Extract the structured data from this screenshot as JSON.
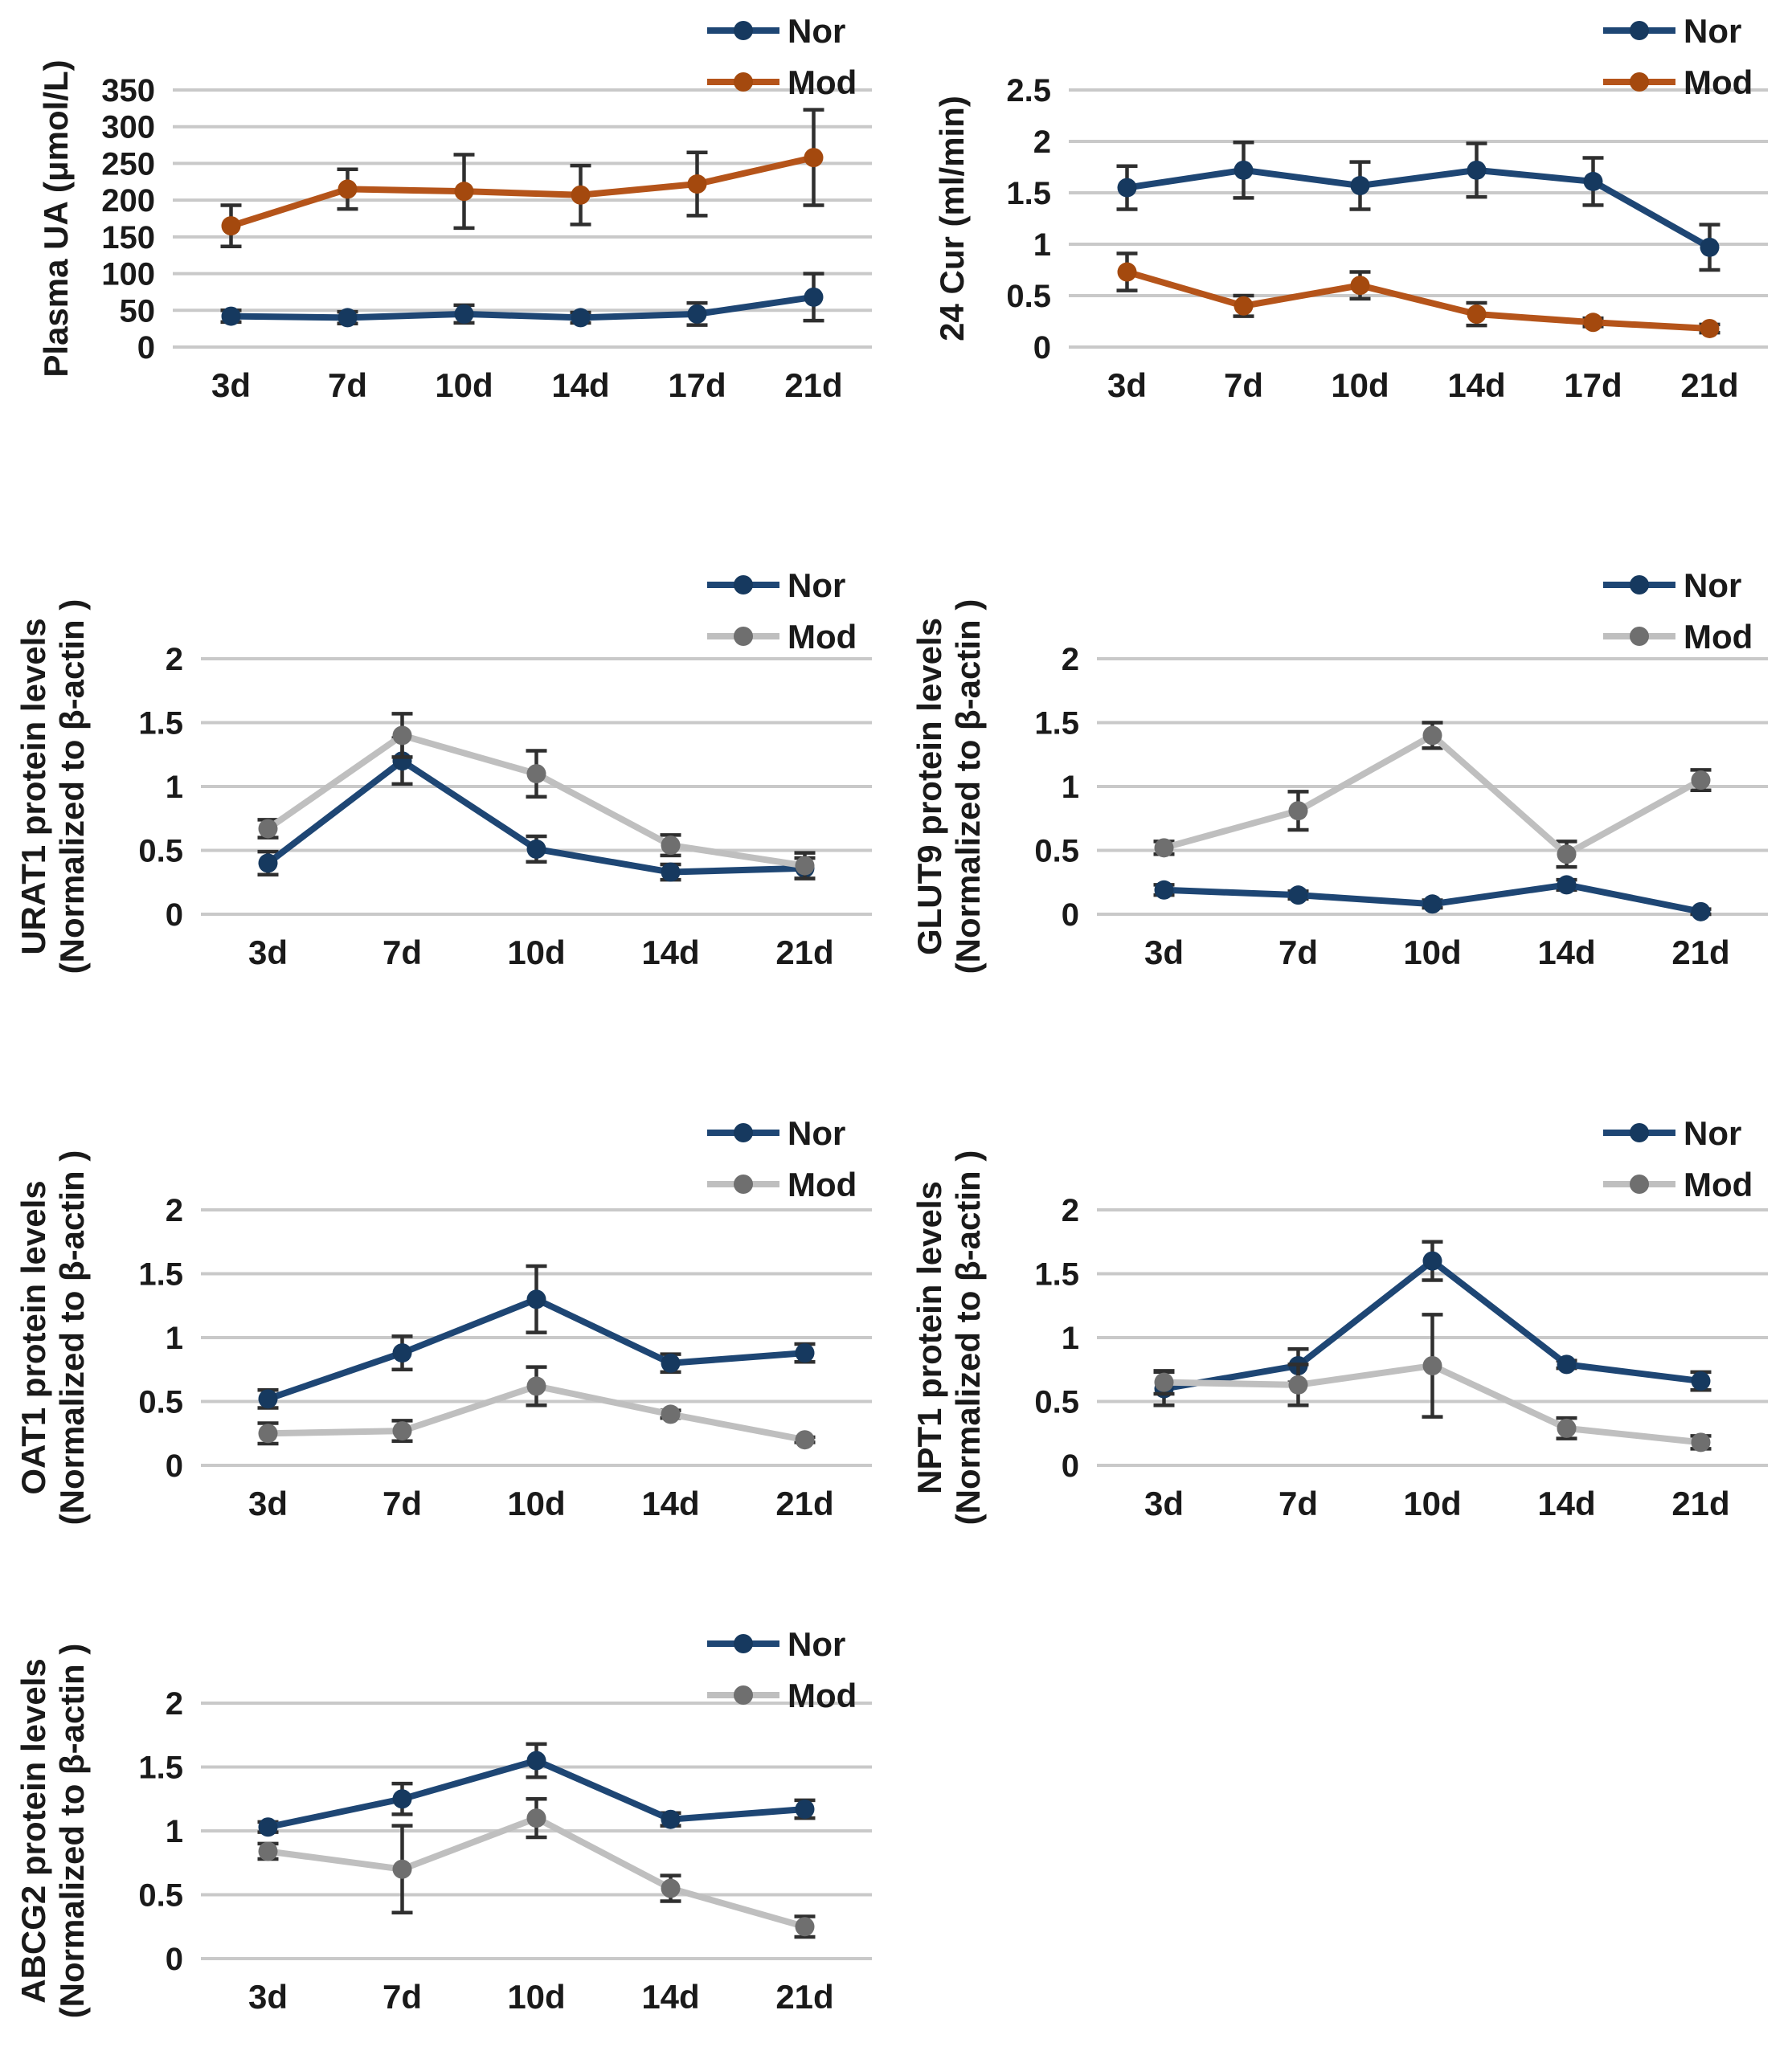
{
  "figure": {
    "background_color": "#ffffff",
    "description_labels": {
      "legend_nor": "Nor",
      "legend_mod": "Mod"
    }
  },
  "palette": {
    "nor_blue_line": "#1E4674",
    "nor_blue_marker": "#16395F",
    "mod_orange_line": "#B5541A",
    "mod_orange_marker": "#A4490E",
    "mod_gray_line": "#BFBFBF",
    "mod_gray_marker": "#6F6F6F",
    "gridline": "#C9C9C9",
    "error_bar": "#2F2F2F",
    "text": "#1a1a1a"
  },
  "chart_data": [
    {
      "id": "plasma-ua",
      "type": "line",
      "title": "",
      "ylabel_lines": [
        "Plasma UA (μmol/L)"
      ],
      "categories": [
        "3d",
        "7d",
        "10d",
        "14d",
        "17d",
        "21d"
      ],
      "ylim": [
        0,
        350
      ],
      "yticks": [
        0,
        50,
        100,
        150,
        200,
        250,
        300,
        350
      ],
      "ytick_labels": [
        "0",
        "50",
        "100",
        "150",
        "200",
        "250",
        "300",
        "350"
      ],
      "grid": true,
      "legend_position": "top-right",
      "series": [
        {
          "name": "Nor",
          "line_color": "#1E4674",
          "marker_color": "#16395F",
          "values": [
            42,
            40,
            45,
            40,
            45,
            68
          ],
          "errors": [
            8,
            8,
            12,
            7,
            15,
            32
          ]
        },
        {
          "name": "Mod",
          "line_color": "#B5541A",
          "marker_color": "#A4490E",
          "values": [
            165,
            215,
            212,
            207,
            222,
            258
          ],
          "errors": [
            28,
            27,
            50,
            40,
            43,
            65
          ]
        }
      ]
    },
    {
      "id": "24-cur",
      "type": "line",
      "title": "",
      "ylabel_lines": [
        "24 Cur (ml/min)"
      ],
      "categories": [
        "3d",
        "7d",
        "10d",
        "14d",
        "17d",
        "21d"
      ],
      "ylim": [
        0,
        2.5
      ],
      "yticks": [
        0,
        0.5,
        1,
        1.5,
        2,
        2.5
      ],
      "ytick_labels": [
        "0",
        "0.5",
        "1",
        "1.5",
        "2",
        "2.5"
      ],
      "grid": true,
      "legend_position": "top-right",
      "series": [
        {
          "name": "Nor",
          "line_color": "#1E4674",
          "marker_color": "#16395F",
          "values": [
            1.55,
            1.72,
            1.57,
            1.72,
            1.61,
            0.97
          ],
          "errors": [
            0.21,
            0.27,
            0.23,
            0.26,
            0.23,
            0.22
          ]
        },
        {
          "name": "Mod",
          "line_color": "#B5541A",
          "marker_color": "#A4490E",
          "values": [
            0.73,
            0.4,
            0.6,
            0.32,
            0.24,
            0.18
          ],
          "errors": [
            0.18,
            0.1,
            0.13,
            0.11,
            0.04,
            0.04
          ]
        }
      ]
    },
    {
      "id": "urat1",
      "type": "line",
      "title": "",
      "ylabel_lines": [
        "URAT1 protein levels",
        "(Normalized to β-actin )"
      ],
      "categories": [
        "3d",
        "7d",
        "10d",
        "14d",
        "21d"
      ],
      "ylim": [
        0,
        2
      ],
      "yticks": [
        0,
        0.5,
        1,
        1.5,
        2
      ],
      "ytick_labels": [
        "0",
        "0.5",
        "1",
        "1.5",
        "2"
      ],
      "grid": true,
      "legend_position": "top-right",
      "series": [
        {
          "name": "Nor",
          "line_color": "#1E4674",
          "marker_color": "#16395F",
          "values": [
            0.4,
            1.2,
            0.51,
            0.33,
            0.36
          ],
          "errors": [
            0.09,
            0.18,
            0.1,
            0.06,
            0.08
          ]
        },
        {
          "name": "Mod",
          "line_color": "#BFBFBF",
          "marker_color": "#6F6F6F",
          "values": [
            0.67,
            1.4,
            1.1,
            0.54,
            0.38
          ],
          "errors": [
            0.07,
            0.17,
            0.18,
            0.08,
            0.1
          ]
        }
      ]
    },
    {
      "id": "glut9",
      "type": "line",
      "title": "",
      "ylabel_lines": [
        "GLUT9 protein levels",
        "(Normalized to β-actin )"
      ],
      "categories": [
        "3d",
        "7d",
        "10d",
        "14d",
        "21d"
      ],
      "ylim": [
        0,
        2
      ],
      "yticks": [
        0,
        0.5,
        1,
        1.5,
        2
      ],
      "ytick_labels": [
        "0",
        "0.5",
        "1",
        "1.5",
        "2"
      ],
      "grid": true,
      "legend_position": "top-right",
      "series": [
        {
          "name": "Nor",
          "line_color": "#1E4674",
          "marker_color": "#16395F",
          "values": [
            0.19,
            0.15,
            0.08,
            0.23,
            0.02
          ],
          "errors": [
            0.04,
            0.03,
            0.03,
            0.04,
            0.02
          ]
        },
        {
          "name": "Mod",
          "line_color": "#BFBFBF",
          "marker_color": "#6F6F6F",
          "values": [
            0.52,
            0.81,
            1.4,
            0.47,
            1.05
          ],
          "errors": [
            0.05,
            0.15,
            0.1,
            0.1,
            0.08
          ]
        }
      ]
    },
    {
      "id": "oat1",
      "type": "line",
      "title": "",
      "ylabel_lines": [
        "OAT1 protein levels",
        "(Normalized to β-actin )"
      ],
      "categories": [
        "3d",
        "7d",
        "10d",
        "14d",
        "21d"
      ],
      "ylim": [
        0,
        2
      ],
      "yticks": [
        0,
        0.5,
        1,
        1.5,
        2
      ],
      "ytick_labels": [
        "0",
        "0.5",
        "1",
        "1.5",
        "2"
      ],
      "grid": true,
      "legend_position": "top-right",
      "series": [
        {
          "name": "Nor",
          "line_color": "#1E4674",
          "marker_color": "#16395F",
          "values": [
            0.52,
            0.88,
            1.3,
            0.8,
            0.88
          ],
          "errors": [
            0.07,
            0.13,
            0.26,
            0.07,
            0.07
          ]
        },
        {
          "name": "Mod",
          "line_color": "#BFBFBF",
          "marker_color": "#6F6F6F",
          "values": [
            0.25,
            0.27,
            0.62,
            0.4,
            0.2
          ],
          "errors": [
            0.08,
            0.08,
            0.15,
            0.03,
            0.02
          ]
        }
      ]
    },
    {
      "id": "npt1",
      "type": "line",
      "title": "",
      "ylabel_lines": [
        "NPT1 protein levels",
        "(Normalized to β-actin )"
      ],
      "categories": [
        "3d",
        "7d",
        "10d",
        "14d",
        "21d"
      ],
      "ylim": [
        0,
        2
      ],
      "yticks": [
        0,
        0.5,
        1,
        1.5,
        2
      ],
      "ytick_labels": [
        "0",
        "0.5",
        "1",
        "1.5",
        "2"
      ],
      "grid": true,
      "legend_position": "top-right",
      "series": [
        {
          "name": "Nor",
          "line_color": "#1E4674",
          "marker_color": "#16395F",
          "values": [
            0.6,
            0.78,
            1.6,
            0.79,
            0.66
          ],
          "errors": [
            0.13,
            0.13,
            0.15,
            0.03,
            0.07
          ]
        },
        {
          "name": "Mod",
          "line_color": "#BFBFBF",
          "marker_color": "#6F6F6F",
          "values": [
            0.65,
            0.63,
            0.78,
            0.29,
            0.18
          ],
          "errors": [
            0.09,
            0.16,
            0.4,
            0.08,
            0.05
          ]
        }
      ]
    },
    {
      "id": "abcg2",
      "type": "line",
      "title": "",
      "ylabel_lines": [
        "ABCG2 protein levels",
        "(Normalized to β-actin )"
      ],
      "categories": [
        "3d",
        "7d",
        "10d",
        "14d",
        "21d"
      ],
      "ylim": [
        0,
        2
      ],
      "yticks": [
        0,
        0.5,
        1,
        1.5,
        2
      ],
      "ytick_labels": [
        "0",
        "0.5",
        "1",
        "1.5",
        "2"
      ],
      "grid": true,
      "legend_position": "top-right",
      "series": [
        {
          "name": "Nor",
          "line_color": "#1E4674",
          "marker_color": "#16395F",
          "values": [
            1.03,
            1.25,
            1.55,
            1.09,
            1.17
          ],
          "errors": [
            0.04,
            0.12,
            0.13,
            0.05,
            0.07
          ]
        },
        {
          "name": "Mod",
          "line_color": "#BFBFBF",
          "marker_color": "#6F6F6F",
          "values": [
            0.84,
            0.7,
            1.1,
            0.55,
            0.25
          ],
          "errors": [
            0.06,
            0.34,
            0.15,
            0.1,
            0.08
          ]
        }
      ]
    }
  ]
}
